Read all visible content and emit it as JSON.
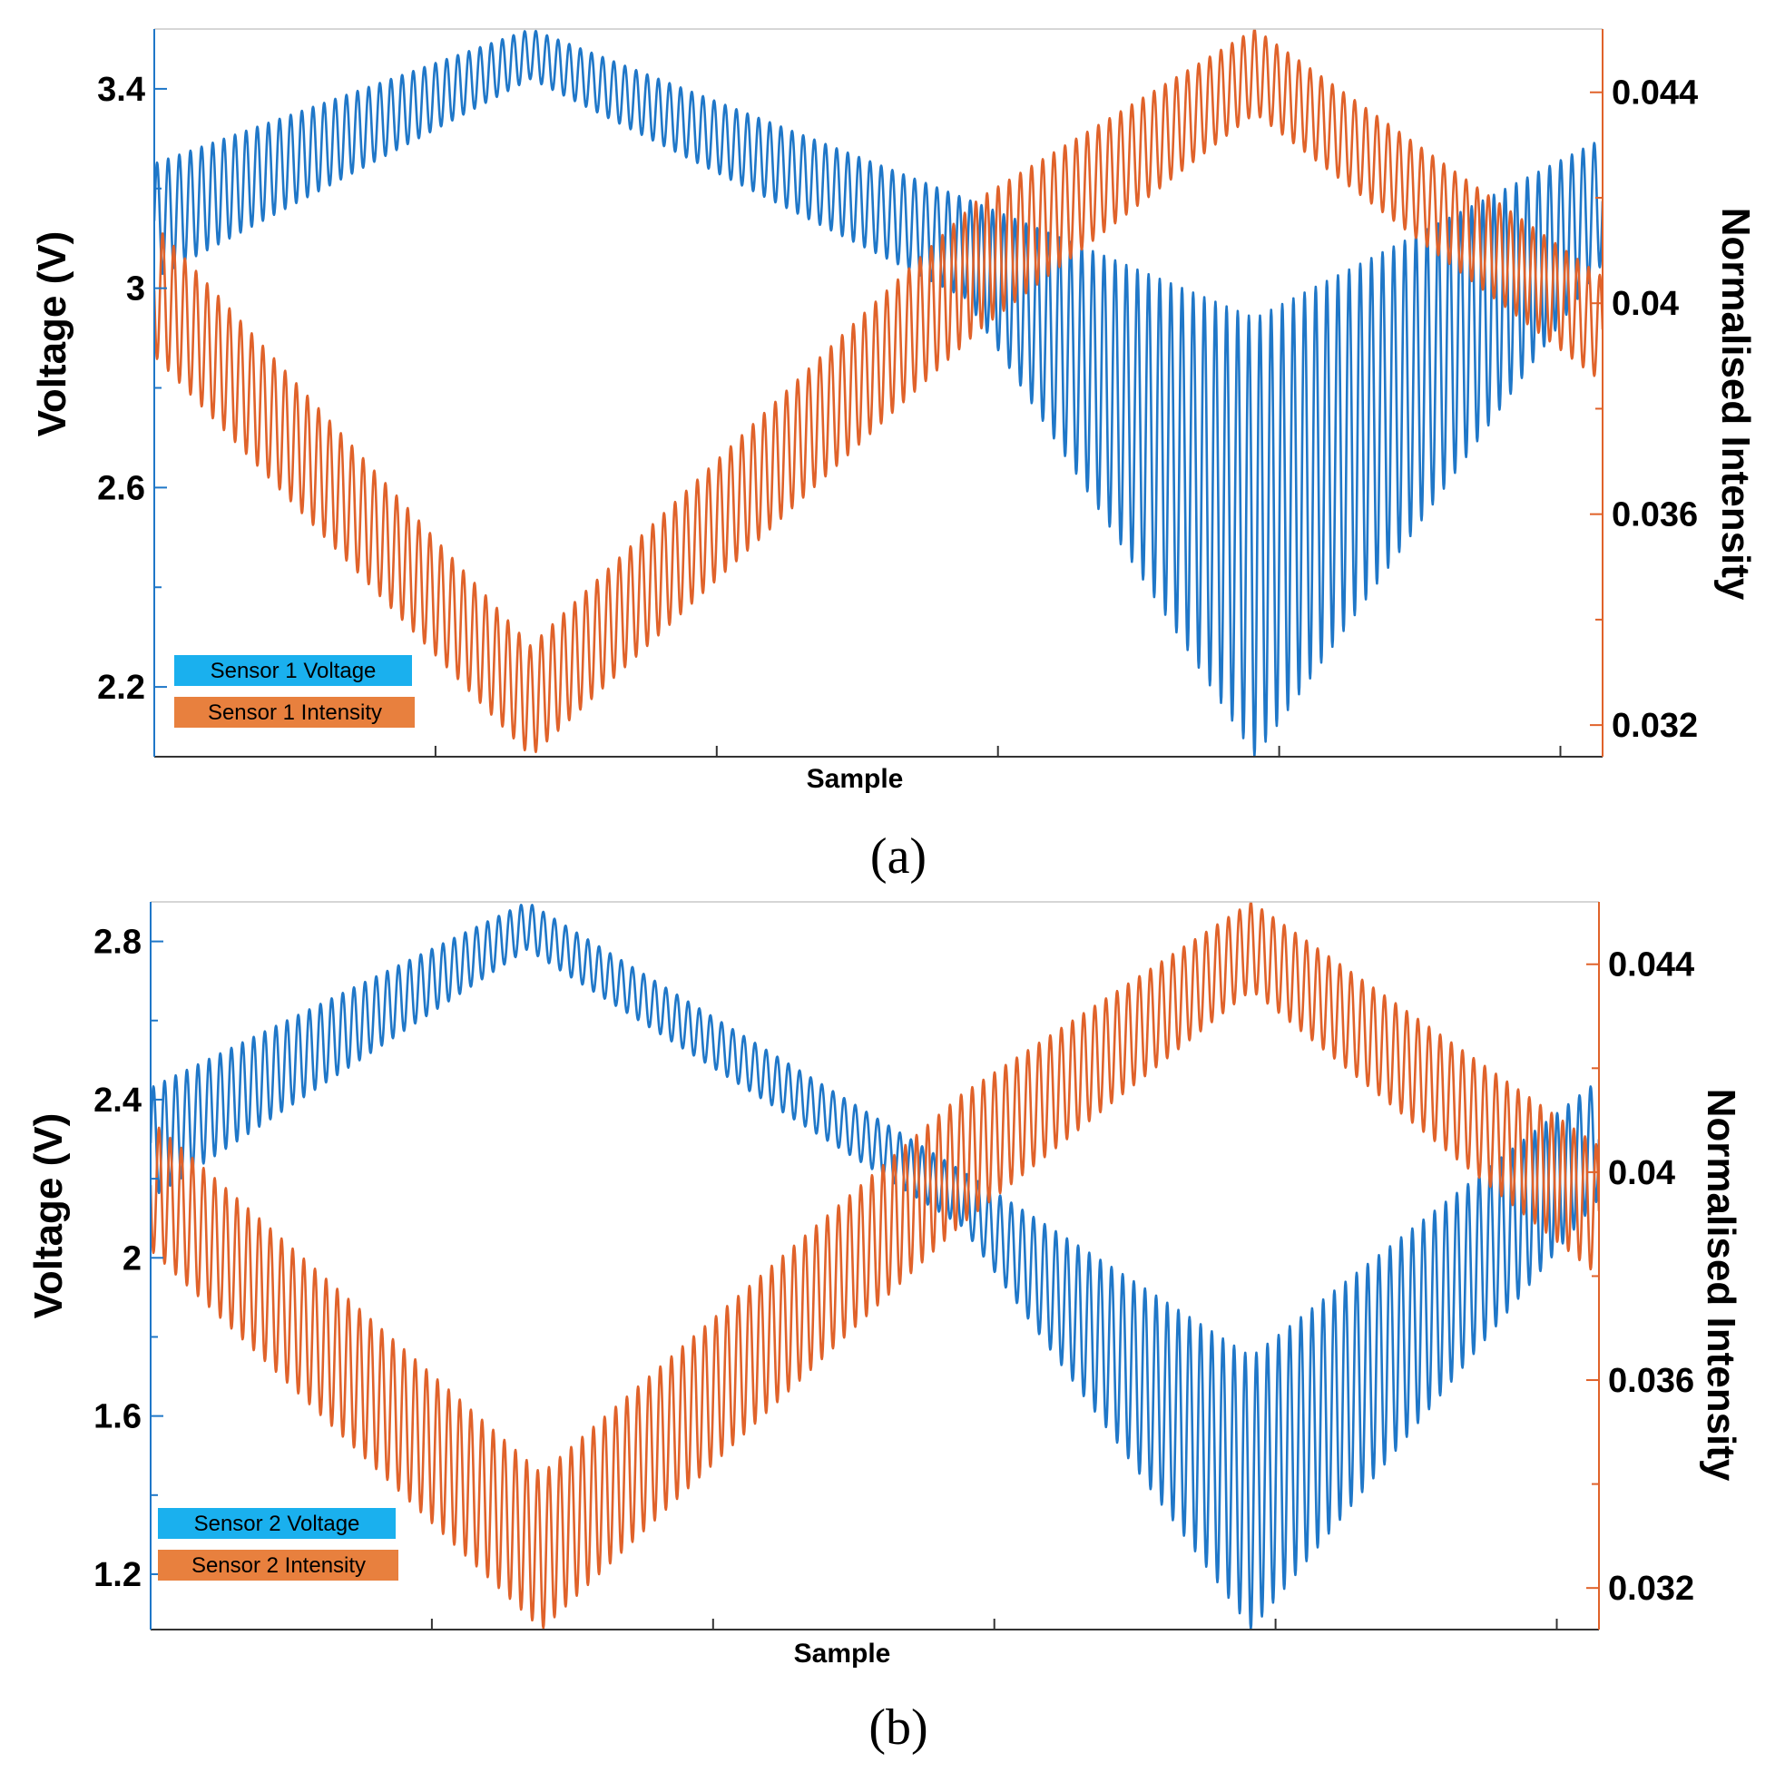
{
  "colors": {
    "voltage_line": "#1f77c8",
    "intensity_line": "#e0622a",
    "voltage_legend": "#1ab0ee",
    "intensity_legend": "#e8803e",
    "left_axis": "#1f77c8",
    "right_axis": "#e0622a"
  },
  "chart_data": [
    {
      "type": "line",
      "panel_label": "(a)",
      "xlabel": "Sample",
      "ylabel": "Voltage (V)",
      "y2label": "Normalised Intensity",
      "x_range": [
        0,
        1000
      ],
      "ylim": [
        2.06,
        3.52
      ],
      "y2lim": [
        0.0314,
        0.0452
      ],
      "y_ticks": [
        2.2,
        2.6,
        3,
        3.4
      ],
      "y_tick_labels": [
        "2.2",
        "2.6",
        "3",
        "3.4"
      ],
      "y2_ticks": [
        0.032,
        0.036,
        0.04,
        0.044
      ],
      "y2_tick_labels": [
        "0.032",
        "0.036",
        "0.04",
        "0.044"
      ],
      "legend": [
        "Sensor 1 Voltage",
        "Sensor 1 Intensity"
      ],
      "legend_position": "bottom-left",
      "series": [
        {
          "name": "Sensor 1 Voltage",
          "axis": "left",
          "cycles": 130,
          "upper_envelope": [
            [
              0,
              3.25
            ],
            [
              260,
              3.52
            ],
            [
              560,
              3.18
            ],
            [
              760,
              2.94
            ],
            [
              1000,
              3.3
            ]
          ],
          "lower_envelope": [
            [
              0,
              3.02
            ],
            [
              260,
              3.42
            ],
            [
              560,
              2.98
            ],
            [
              760,
              2.06
            ],
            [
              1000,
              3.05
            ]
          ]
        },
        {
          "name": "Sensor 1 Intensity",
          "axis": "right",
          "cycles": 130,
          "upper_envelope": [
            [
              0,
              0.0415
            ],
            [
              260,
              0.0335
            ],
            [
              570,
              0.042
            ],
            [
              760,
              0.0452
            ],
            [
              1000,
              0.0405
            ]
          ],
          "lower_envelope": [
            [
              0,
              0.039
            ],
            [
              260,
              0.0314
            ],
            [
              570,
              0.0395
            ],
            [
              760,
              0.0436
            ],
            [
              1000,
              0.0385
            ]
          ]
        }
      ]
    },
    {
      "type": "line",
      "panel_label": "(b)",
      "xlabel": "Sample",
      "ylabel": "Voltage (V)",
      "y2label": "Normalised Intensity",
      "x_range": [
        0,
        1000
      ],
      "ylim": [
        1.06,
        2.9
      ],
      "y2lim": [
        0.0312,
        0.0452
      ],
      "y_ticks": [
        1.2,
        1.6,
        2,
        2.4,
        2.8
      ],
      "y_tick_labels": [
        "1.2",
        "1.6",
        "2",
        "2.4",
        "2.8"
      ],
      "y2_ticks": [
        0.032,
        0.036,
        0.04,
        0.044
      ],
      "y2_tick_labels": [
        "0.032",
        "0.036",
        "0.04",
        "0.044"
      ],
      "legend": [
        "Sensor 2 Voltage",
        "Sensor 2 Intensity"
      ],
      "legend_position": "bottom-left",
      "series": [
        {
          "name": "Sensor 2 Voltage",
          "axis": "left",
          "cycles": 130,
          "upper_envelope": [
            [
              0,
              2.43
            ],
            [
              260,
              2.9
            ],
            [
              560,
              2.22
            ],
            [
              760,
              1.75
            ],
            [
              1000,
              2.45
            ]
          ],
          "lower_envelope": [
            [
              0,
              2.15
            ],
            [
              260,
              2.78
            ],
            [
              560,
              2.08
            ],
            [
              760,
              1.06
            ],
            [
              1000,
              2.15
            ]
          ]
        },
        {
          "name": "Sensor 2 Intensity",
          "axis": "right",
          "cycles": 130,
          "upper_envelope": [
            [
              0,
              0.041
            ],
            [
              270,
              0.0342
            ],
            [
              560,
              0.0415
            ],
            [
              760,
              0.0452
            ],
            [
              1000,
              0.0405
            ]
          ],
          "lower_envelope": [
            [
              0,
              0.0385
            ],
            [
              270,
              0.0312
            ],
            [
              560,
              0.039
            ],
            [
              760,
              0.0435
            ],
            [
              1000,
              0.038
            ]
          ]
        }
      ]
    }
  ]
}
